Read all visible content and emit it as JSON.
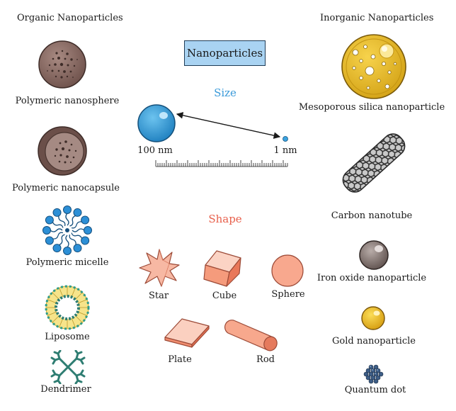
{
  "headers": {
    "organic": "Organic Nanoparticles",
    "inorganic": "Inorganic Nanoparticles"
  },
  "title": "Nanoparticles",
  "size_section": {
    "title": "Size",
    "large_label": "100 nm",
    "small_label": "1 nm"
  },
  "shape_section": {
    "title": "Shape",
    "shapes": [
      "Star",
      "Cube",
      "Sphere",
      "Plate",
      "Rod"
    ]
  },
  "organic": [
    "Polymeric nanosphere",
    "Polymeric nanocapsule",
    "Polymeric micelle",
    "Liposome",
    "Dendrimer"
  ],
  "inorganic": [
    "Mesoporous silica nanoparticle",
    "Carbon nanotube",
    "Iron oxide nanoparticle",
    "Gold nanoparticle",
    "Quantum dot"
  ],
  "colors": {
    "size_title": "#3a9ad9",
    "shape_title": "#e8604c",
    "title_box": "#a9d3f2",
    "polymer": "#7a5c55",
    "micelle": "#2c8fd6",
    "liposome": "#f2d64b",
    "dendrimer": "#2e7d72",
    "silica": "#e3b825",
    "iron_oxide": "#7a6a66",
    "gold": "#e9b820",
    "quantum_dot": "#3d5d86",
    "shape_fill": "#f7a58c"
  }
}
